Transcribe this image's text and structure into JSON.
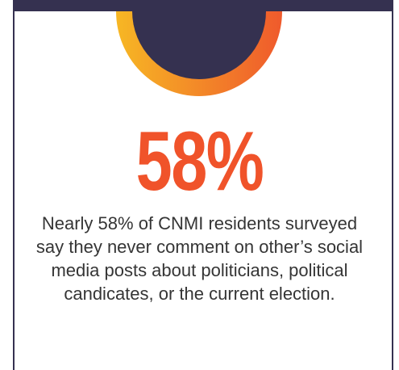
{
  "infographic": {
    "percentage": "58%",
    "caption": "Nearly 58% of CNMI residents surveyed say they never comment on other’s social media posts about politicians, political candicates, or the current election."
  },
  "colors": {
    "navy": "#353150",
    "accent_orange": "#f0532a",
    "ring_gradient_start": "#f7b724",
    "ring_gradient_end": "#ef5a2c",
    "text": "#353535"
  }
}
